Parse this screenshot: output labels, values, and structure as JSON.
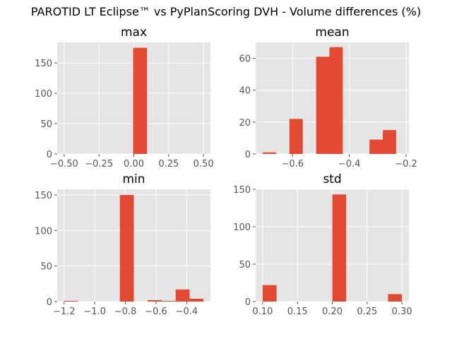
{
  "figure": {
    "title": "PAROTID LT Eclipse™ vs PyPlanScoring DVH - Volume differences (%)"
  },
  "colors": {
    "bar": "#E24A33",
    "panel_background": "#E5E5E5",
    "grid": "#FFFFFF",
    "tick_label": "#555555"
  },
  "chart_data": [
    {
      "type": "bar",
      "title": "max",
      "bins": [
        {
          "x0": -0.005,
          "x1": 0.095,
          "count": 175
        }
      ],
      "xlim": [
        -0.55,
        0.55
      ],
      "ylim": [
        0,
        184
      ],
      "xticks": [
        -0.5,
        -0.25,
        0.0,
        0.25,
        0.5
      ],
      "xtick_labels": [
        "−0.50",
        "−0.25",
        "0.00",
        "0.25",
        "0.50"
      ],
      "yticks": [
        0,
        50,
        100,
        150
      ],
      "ytick_labels": [
        "0",
        "50",
        "100",
        "150"
      ],
      "grid": true
    },
    {
      "type": "bar",
      "title": "mean",
      "bins": [
        {
          "x0": -0.705,
          "x1": -0.658,
          "count": 1
        },
        {
          "x0": -0.658,
          "x1": -0.611,
          "count": 0
        },
        {
          "x0": -0.611,
          "x1": -0.564,
          "count": 22
        },
        {
          "x0": -0.564,
          "x1": -0.517,
          "count": 0
        },
        {
          "x0": -0.517,
          "x1": -0.47,
          "count": 61
        },
        {
          "x0": -0.47,
          "x1": -0.423,
          "count": 67
        },
        {
          "x0": -0.423,
          "x1": -0.376,
          "count": 0
        },
        {
          "x0": -0.376,
          "x1": -0.329,
          "count": 0
        },
        {
          "x0": -0.329,
          "x1": -0.282,
          "count": 9
        },
        {
          "x0": -0.282,
          "x1": -0.235,
          "count": 15
        }
      ],
      "xlim": [
        -0.73,
        -0.19
      ],
      "ylim": [
        0,
        70
      ],
      "xticks": [
        -0.6,
        -0.4,
        -0.2
      ],
      "xtick_labels": [
        "−0.6",
        "−0.4",
        "−0.2"
      ],
      "yticks": [
        0,
        20,
        40,
        60
      ],
      "ytick_labels": [
        "0",
        "20",
        "40",
        "60"
      ],
      "grid": true
    },
    {
      "type": "bar",
      "title": "min",
      "bins": [
        {
          "x0": -1.2,
          "x1": -1.109,
          "count": 1
        },
        {
          "x0": -1.109,
          "x1": -1.018,
          "count": 0
        },
        {
          "x0": -1.018,
          "x1": -0.927,
          "count": 0
        },
        {
          "x0": -0.927,
          "x1": -0.836,
          "count": 0
        },
        {
          "x0": -0.836,
          "x1": -0.745,
          "count": 150
        },
        {
          "x0": -0.745,
          "x1": -0.654,
          "count": 0
        },
        {
          "x0": -0.654,
          "x1": -0.563,
          "count": 2
        },
        {
          "x0": -0.563,
          "x1": -0.472,
          "count": 1
        },
        {
          "x0": -0.472,
          "x1": -0.381,
          "count": 17
        },
        {
          "x0": -0.381,
          "x1": -0.29,
          "count": 4
        }
      ],
      "xlim": [
        -1.245,
        -0.245
      ],
      "ylim": [
        0,
        158
      ],
      "xticks": [
        -1.2,
        -1.0,
        -0.8,
        -0.6,
        -0.4
      ],
      "xtick_labels": [
        "−1.2",
        "−1.0",
        "−0.8",
        "−0.6",
        "−0.4"
      ],
      "yticks": [
        0,
        50,
        100,
        150
      ],
      "ytick_labels": [
        "0",
        "50",
        "100",
        "150"
      ],
      "grid": true
    },
    {
      "type": "bar",
      "title": "std",
      "bins": [
        {
          "x0": 0.1,
          "x1": 0.12,
          "count": 22
        },
        {
          "x0": 0.12,
          "x1": 0.14,
          "count": 0
        },
        {
          "x0": 0.14,
          "x1": 0.16,
          "count": 0
        },
        {
          "x0": 0.16,
          "x1": 0.18,
          "count": 0
        },
        {
          "x0": 0.18,
          "x1": 0.2,
          "count": 0
        },
        {
          "x0": 0.2,
          "x1": 0.22,
          "count": 143
        },
        {
          "x0": 0.22,
          "x1": 0.24,
          "count": 0
        },
        {
          "x0": 0.24,
          "x1": 0.26,
          "count": 0
        },
        {
          "x0": 0.26,
          "x1": 0.28,
          "count": 0
        },
        {
          "x0": 0.28,
          "x1": 0.3,
          "count": 10
        }
      ],
      "xlim": [
        0.09,
        0.31
      ],
      "ylim": [
        0,
        150
      ],
      "xticks": [
        0.1,
        0.15,
        0.2,
        0.25,
        0.3
      ],
      "xtick_labels": [
        "0.10",
        "0.15",
        "0.20",
        "0.25",
        "0.30"
      ],
      "yticks": [
        0,
        50,
        100,
        150
      ],
      "ytick_labels": [
        "0",
        "50",
        "100",
        "150"
      ],
      "grid": true
    }
  ]
}
